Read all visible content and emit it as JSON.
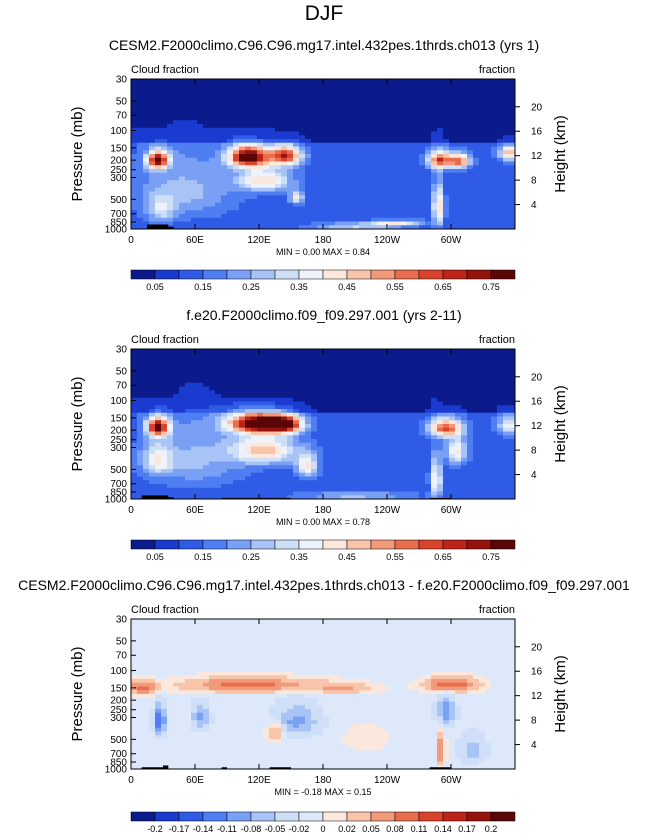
{
  "figure_title": "DJF",
  "chart_data": [
    {
      "type": "heatmap",
      "title": "CESM2.F2000climo.C96.C96.mg17.intel.432pes.1thrds.ch013 (yrs 1)",
      "left_label": "Cloud fraction",
      "right_label": "fraction",
      "ylabel": "Pressure (mb)",
      "ylabel_right": "Height (km)",
      "x_ticks": [
        "0",
        "60E",
        "120E",
        "180",
        "120W",
        "60W"
      ],
      "x_tick_values": [
        0,
        60,
        120,
        180,
        240,
        300
      ],
      "xlim": [
        0,
        360
      ],
      "y_ticks": [
        "30",
        "50",
        "70",
        "100",
        "150",
        "200",
        "250",
        "300",
        "500",
        "700",
        "850",
        "1000"
      ],
      "y_tick_values": [
        30,
        50,
        70,
        100,
        150,
        200,
        250,
        300,
        500,
        700,
        850,
        1000
      ],
      "ylim": [
        30,
        1000
      ],
      "height_ticks": [
        "20",
        "16",
        "12",
        "8",
        "4"
      ],
      "height_tick_values": [
        20,
        16,
        12,
        8,
        4
      ],
      "stats": "MIN =   0.00  MAX =   0.84",
      "min": 0.0,
      "max": 0.84,
      "colorbar_labels": [
        "0.05",
        "0.15",
        "0.25",
        "0.35",
        "0.45",
        "0.55",
        "0.65",
        "0.75"
      ],
      "colorbar_levels": [
        0.05,
        0.1,
        0.15,
        0.2,
        0.25,
        0.3,
        0.35,
        0.4,
        0.45,
        0.5,
        0.55,
        0.6,
        0.65,
        0.7,
        0.75
      ],
      "colors": [
        "#0b1b8c",
        "#1a3ad0",
        "#2f5be6",
        "#4f7ef2",
        "#7aa0f5",
        "#a8c3f6",
        "#cfdff8",
        "#eef3fb",
        "#fbe7dc",
        "#f8c4aa",
        "#f2997a",
        "#e86c4d",
        "#d9432b",
        "#be2317",
        "#96120d",
        "#5a0606"
      ],
      "features": [
        {
          "lon": 25,
          "p": 200,
          "amp": 0.62,
          "slon": 10,
          "sp": 40
        },
        {
          "lon": 28,
          "p": 650,
          "amp": 0.18,
          "slon": 12,
          "sp": 200
        },
        {
          "lon": 110,
          "p": 185,
          "amp": 0.72,
          "slon": 18,
          "sp": 45
        },
        {
          "lon": 145,
          "p": 180,
          "amp": 0.55,
          "slon": 15,
          "sp": 40
        },
        {
          "lon": 125,
          "p": 320,
          "amp": 0.32,
          "slon": 25,
          "sp": 90
        },
        {
          "lon": 155,
          "p": 480,
          "amp": 0.3,
          "slon": 6,
          "sp": 70
        },
        {
          "lon": 50,
          "p": 420,
          "amp": 0.15,
          "slon": 45,
          "sp": 300
        },
        {
          "lon": 290,
          "p": 200,
          "amp": 0.48,
          "slon": 12,
          "sp": 40
        },
        {
          "lon": 308,
          "p": 205,
          "amp": 0.42,
          "slon": 10,
          "sp": 35
        },
        {
          "lon": 288,
          "p": 600,
          "amp": 0.35,
          "slon": 5,
          "sp": 280
        },
        {
          "lon": 355,
          "p": 170,
          "amp": 0.38,
          "slon": 10,
          "sp": 30
        },
        {
          "lon": 250,
          "p": 870,
          "amp": 0.25,
          "slon": 25,
          "sp": 60
        },
        {
          "lon": 210,
          "p": 930,
          "amp": 0.22,
          "slon": 40,
          "sp": 60
        }
      ],
      "terrain": [
        {
          "lon0": 15,
          "lon1": 35,
          "p": 900
        },
        {
          "lon0": 35,
          "lon1": 40,
          "p": 950
        }
      ]
    },
    {
      "type": "heatmap",
      "title": "f.e20.F2000climo.f09_f09.297.001 (yrs 2-11)",
      "left_label": "Cloud fraction",
      "right_label": "fraction",
      "ylabel": "Pressure (mb)",
      "ylabel_right": "Height (km)",
      "x_ticks": [
        "0",
        "60E",
        "120E",
        "180",
        "120W",
        "60W"
      ],
      "x_tick_values": [
        0,
        60,
        120,
        180,
        240,
        300
      ],
      "xlim": [
        0,
        360
      ],
      "y_ticks": [
        "30",
        "50",
        "70",
        "100",
        "150",
        "200",
        "250",
        "300",
        "500",
        "700",
        "850",
        "1000"
      ],
      "y_tick_values": [
        30,
        50,
        70,
        100,
        150,
        200,
        250,
        300,
        500,
        700,
        850,
        1000
      ],
      "ylim": [
        30,
        1000
      ],
      "height_ticks": [
        "20",
        "16",
        "12",
        "8",
        "4"
      ],
      "height_tick_values": [
        20,
        16,
        12,
        8,
        4
      ],
      "stats": "MIN =   0.00  MAX =   0.78",
      "min": 0.0,
      "max": 0.78,
      "colorbar_labels": [
        "0.05",
        "0.15",
        "0.25",
        "0.35",
        "0.45",
        "0.55",
        "0.65",
        "0.75"
      ],
      "colorbar_levels": [
        0.05,
        0.1,
        0.15,
        0.2,
        0.25,
        0.3,
        0.35,
        0.4,
        0.45,
        0.5,
        0.55,
        0.6,
        0.65,
        0.7,
        0.75
      ],
      "colors": [
        "#0b1b8c",
        "#1a3ad0",
        "#2f5be6",
        "#4f7ef2",
        "#7aa0f5",
        "#a8c3f6",
        "#cfdff8",
        "#eef3fb",
        "#fbe7dc",
        "#f8c4aa",
        "#f2997a",
        "#e86c4d",
        "#d9432b",
        "#be2317",
        "#96120d",
        "#5a0606"
      ],
      "features": [
        {
          "lon": 25,
          "p": 185,
          "amp": 0.62,
          "slon": 10,
          "sp": 40
        },
        {
          "lon": 25,
          "p": 400,
          "amp": 0.22,
          "slon": 14,
          "sp": 150
        },
        {
          "lon": 118,
          "p": 170,
          "amp": 0.7,
          "slon": 26,
          "sp": 40
        },
        {
          "lon": 145,
          "p": 175,
          "amp": 0.55,
          "slon": 16,
          "sp": 35
        },
        {
          "lon": 125,
          "p": 320,
          "amp": 0.35,
          "slon": 30,
          "sp": 110
        },
        {
          "lon": 165,
          "p": 460,
          "amp": 0.3,
          "slon": 10,
          "sp": 120
        },
        {
          "lon": 60,
          "p": 400,
          "amp": 0.14,
          "slon": 45,
          "sp": 300
        },
        {
          "lon": 295,
          "p": 190,
          "amp": 0.48,
          "slon": 15,
          "sp": 40
        },
        {
          "lon": 286,
          "p": 650,
          "amp": 0.32,
          "slon": 5,
          "sp": 300
        },
        {
          "lon": 305,
          "p": 330,
          "amp": 0.3,
          "slon": 10,
          "sp": 100
        },
        {
          "lon": 355,
          "p": 180,
          "amp": 0.25,
          "slon": 12,
          "sp": 40
        },
        {
          "lon": 210,
          "p": 920,
          "amp": 0.2,
          "slon": 50,
          "sp": 60
        }
      ],
      "terrain": [
        {
          "lon0": 10,
          "lon1": 35,
          "p": 920
        },
        {
          "lon0": 35,
          "lon1": 40,
          "p": 960
        },
        {
          "lon0": 85,
          "lon1": 150,
          "p": 975
        },
        {
          "lon0": 280,
          "lon1": 300,
          "p": 975
        }
      ]
    },
    {
      "type": "heatmap",
      "title": "CESM2.F2000climo.C96.C96.mg17.intel.432pes.1thrds.ch013 - f.e20.F2000climo.f09_f09.297.001",
      "left_label": "Cloud fraction",
      "right_label": "fraction",
      "ylabel": "Pressure (mb)",
      "ylabel_right": "Height (km)",
      "x_ticks": [
        "0",
        "60E",
        "120E",
        "180",
        "120W",
        "60W"
      ],
      "x_tick_values": [
        0,
        60,
        120,
        180,
        240,
        300
      ],
      "xlim": [
        0,
        360
      ],
      "y_ticks": [
        "30",
        "50",
        "70",
        "100",
        "150",
        "200",
        "250",
        "300",
        "500",
        "700",
        "850",
        "1000"
      ],
      "y_tick_values": [
        30,
        50,
        70,
        100,
        150,
        200,
        250,
        300,
        500,
        700,
        850,
        1000
      ],
      "ylim": [
        30,
        1000
      ],
      "height_ticks": [
        "20",
        "16",
        "12",
        "8",
        "4"
      ],
      "height_tick_values": [
        20,
        16,
        12,
        8,
        4
      ],
      "stats": "MIN =  -0.18  MAX =   0.15",
      "min": -0.18,
      "max": 0.15,
      "colorbar_labels": [
        "-0.2",
        "-0.17",
        "-0.14",
        "-0.11",
        "-0.08",
        "-0.05",
        "-0.02",
        "0",
        "0.02",
        "0.05",
        "0.08",
        "0.11",
        "0.14",
        "0.17",
        "0.2"
      ],
      "colorbar_levels": [
        -0.2,
        -0.17,
        -0.14,
        -0.11,
        -0.08,
        -0.05,
        -0.02,
        0,
        0.02,
        0.05,
        0.08,
        0.11,
        0.14,
        0.17,
        0.2
      ],
      "colors": [
        "#0b1b8c",
        "#1a3ad0",
        "#2f5be6",
        "#4f7ef2",
        "#7aa0f5",
        "#a8c3f6",
        "#cfdff8",
        "#dde8fa",
        "#fbe7dc",
        "#f8c4aa",
        "#f2997a",
        "#e86c4d",
        "#d9432b",
        "#be2317",
        "#96120d",
        "#5a0606"
      ],
      "background": -0.01,
      "features": [
        {
          "lon": 110,
          "p": 140,
          "amp": 0.11,
          "slon": 60,
          "sp": 25
        },
        {
          "lon": 300,
          "p": 140,
          "amp": 0.12,
          "slon": 25,
          "sp": 25
        },
        {
          "lon": 10,
          "p": 150,
          "amp": 0.1,
          "slon": 15,
          "sp": 25
        },
        {
          "lon": 200,
          "p": 150,
          "amp": 0.06,
          "slon": 30,
          "sp": 20
        },
        {
          "lon": 27,
          "p": 330,
          "amp": -0.14,
          "slon": 5,
          "sp": 110
        },
        {
          "lon": 65,
          "p": 300,
          "amp": -0.08,
          "slon": 8,
          "sp": 90
        },
        {
          "lon": 155,
          "p": 330,
          "amp": -0.08,
          "slon": 20,
          "sp": 120
        },
        {
          "lon": 135,
          "p": 420,
          "amp": 0.08,
          "slon": 8,
          "sp": 90
        },
        {
          "lon": 295,
          "p": 260,
          "amp": -0.1,
          "slon": 8,
          "sp": 90
        },
        {
          "lon": 290,
          "p": 650,
          "amp": 0.09,
          "slon": 4,
          "sp": 250
        },
        {
          "lon": 320,
          "p": 650,
          "amp": -0.06,
          "slon": 12,
          "sp": 200
        },
        {
          "lon": 220,
          "p": 500,
          "amp": 0.03,
          "slon": 20,
          "sp": 150
        }
      ],
      "terrain": [
        {
          "lon0": 10,
          "lon1": 30,
          "p": 960
        },
        {
          "lon0": 30,
          "lon1": 35,
          "p": 920
        },
        {
          "lon0": 85,
          "lon1": 90,
          "p": 960
        },
        {
          "lon0": 130,
          "lon1": 150,
          "p": 960
        },
        {
          "lon0": 280,
          "lon1": 300,
          "p": 960
        }
      ]
    }
  ]
}
